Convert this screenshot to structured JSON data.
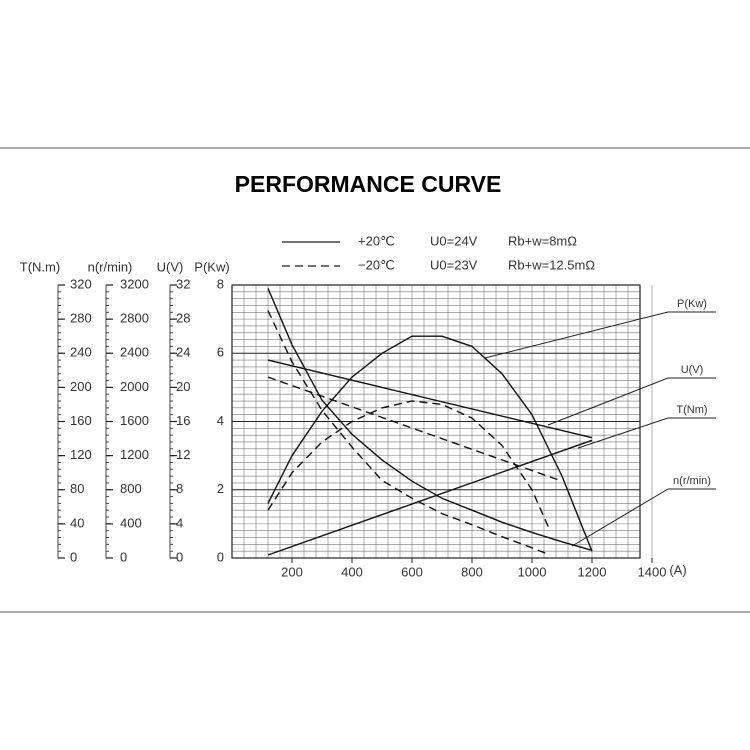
{
  "chart_data": {
    "type": "line",
    "title": "PERFORMANCE CURVE",
    "legend": [
      {
        "style": "solid",
        "temperature": "+20℃",
        "voltage": "U0=24V",
        "resistance": "Rb+w=8mΩ"
      },
      {
        "style": "dashed",
        "temperature": "−20℃",
        "voltage": "U0=23V",
        "resistance": "Rb+w=12.5mΩ"
      }
    ],
    "xlim": [
      0,
      1400
    ],
    "xticks": [
      200,
      400,
      600,
      800,
      1000,
      1200,
      1400
    ],
    "x_unit": "(A)",
    "grid": true,
    "y_axes": [
      {
        "label": "T(N.m)",
        "ylim": [
          0,
          320
        ],
        "yticks": [
          0,
          40,
          80,
          120,
          160,
          200,
          240,
          280,
          320
        ]
      },
      {
        "label": "n(r/min)",
        "ylim": [
          0,
          3200
        ],
        "yticks": [
          0,
          400,
          800,
          1200,
          1600,
          2000,
          2400,
          2800,
          3200
        ]
      },
      {
        "label": "U(V)",
        "ylim": [
          0,
          32
        ],
        "yticks": [
          0,
          4,
          8,
          12,
          16,
          20,
          24,
          28,
          32
        ]
      },
      {
        "label": "P(Kw)",
        "ylim": [
          0,
          8
        ],
        "yticks": [
          0,
          2,
          4,
          6,
          8
        ]
      }
    ],
    "curves": [
      {
        "label": "P(Kw)",
        "axis": 3,
        "series": [
          {
            "style": "solid",
            "x": [
              120,
              200,
              300,
              400,
              500,
              600,
              700,
              800,
              900,
              1000,
              1100,
              1200
            ],
            "values": [
              1.6,
              3.0,
              4.3,
              5.3,
              6.0,
              6.5,
              6.5,
              6.2,
              5.4,
              4.2,
              2.4,
              0.2
            ]
          },
          {
            "style": "dashed",
            "x": [
              120,
              200,
              300,
              400,
              500,
              600,
              700,
              800,
              900,
              1000,
              1060
            ],
            "values": [
              1.4,
              2.5,
              3.4,
              4.0,
              4.4,
              4.6,
              4.5,
              4.1,
              3.3,
              2.0,
              0.8
            ]
          }
        ]
      },
      {
        "label": "U(V)",
        "axis": 2,
        "series": [
          {
            "style": "solid",
            "x": [
              120,
              1200
            ],
            "values": [
              23.2,
              14.1
            ]
          },
          {
            "style": "dashed",
            "x": [
              120,
              1093
            ],
            "values": [
              21.2,
              9.1
            ]
          }
        ]
      },
      {
        "label": "T(Nm)",
        "axis": 0,
        "series": [
          {
            "style": "solid",
            "x": [
              120,
              1200
            ],
            "values": [
              3.5,
              138
            ]
          }
        ]
      },
      {
        "label": "n(r/min)",
        "axis": 1,
        "series": [
          {
            "style": "solid",
            "x": [
              120,
              200,
              300,
              400,
              500,
              600,
              700,
              800,
              900,
              1000,
              1100,
              1200
            ],
            "values": [
              3160,
              2500,
              1850,
              1450,
              1150,
              900,
              700,
              560,
              420,
              300,
              190,
              90
            ]
          },
          {
            "style": "dashed",
            "x": [
              120,
              200,
              300,
              400,
              500,
              600,
              700,
              800,
              900,
              1000,
              1060
            ],
            "values": [
              2900,
              2300,
              1730,
              1300,
              910,
              700,
              520,
              390,
              250,
              120,
              35
            ]
          }
        ]
      }
    ]
  }
}
